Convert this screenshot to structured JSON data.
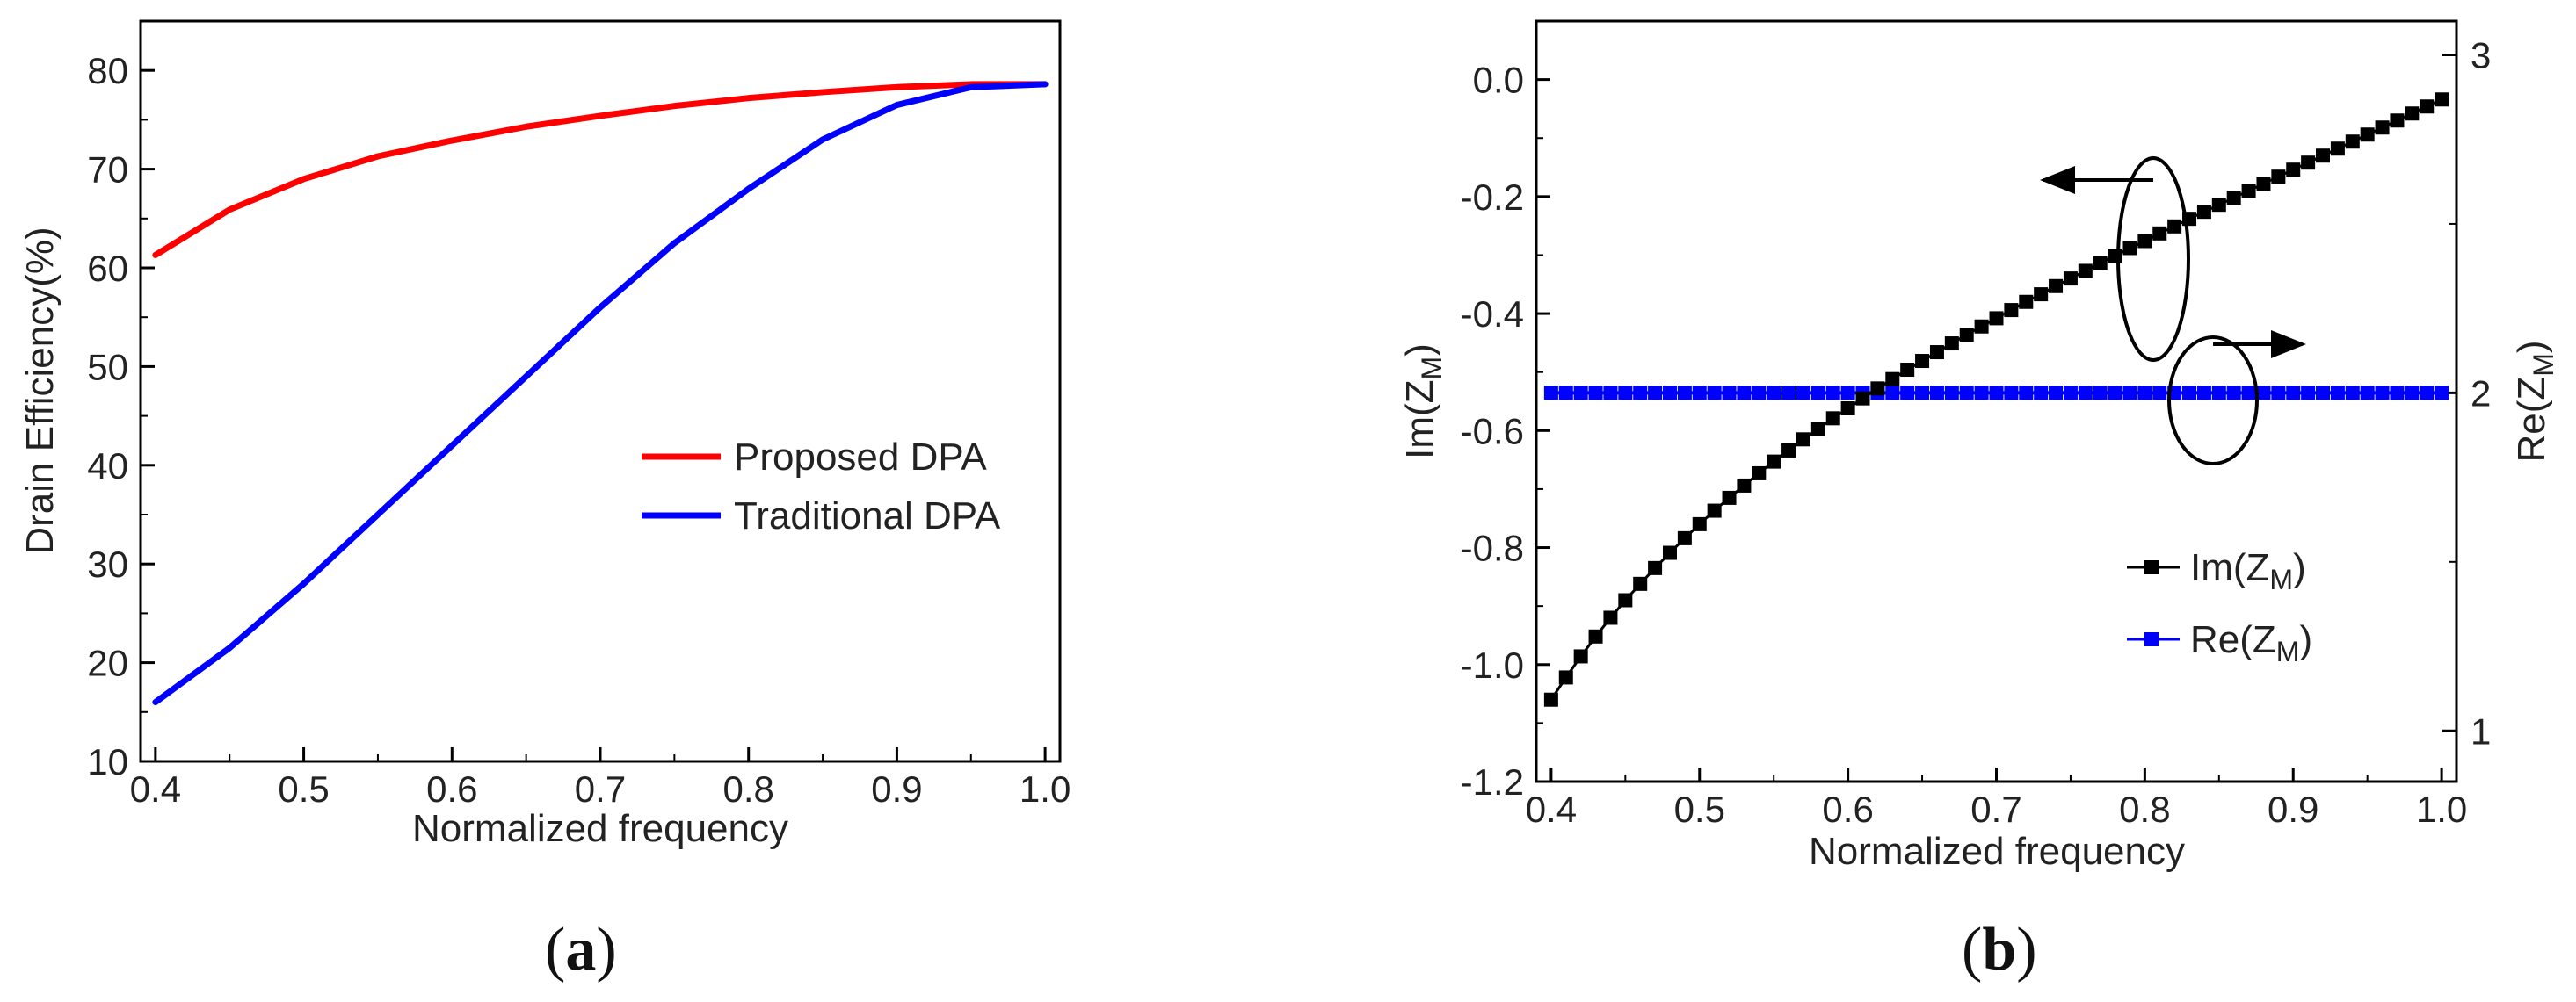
{
  "chart_data": [
    {
      "type": "line",
      "panel_label": "a",
      "xlabel": "Normalized frequency",
      "ylabel": "Drain Efficiency(%)",
      "xlim": [
        0.39,
        1.01
      ],
      "ylim": [
        10,
        85
      ],
      "xticks": [
        "0.4",
        "0.5",
        "0.6",
        "0.7",
        "0.8",
        "0.9",
        "1.0"
      ],
      "yticks": [
        "10",
        "20",
        "30",
        "40",
        "50",
        "60",
        "70",
        "80"
      ],
      "legend_position": "center-right",
      "grid": false,
      "x": [
        0.4,
        0.45,
        0.5,
        0.55,
        0.6,
        0.65,
        0.7,
        0.75,
        0.8,
        0.85,
        0.9,
        0.95,
        1.0
      ],
      "series": [
        {
          "name": "Proposed DPA",
          "color": "#ff0000",
          "values": [
            61.3,
            65.9,
            69.0,
            71.3,
            72.9,
            74.3,
            75.4,
            76.4,
            77.2,
            77.8,
            78.3,
            78.6,
            78.6
          ]
        },
        {
          "name": "Traditional DPA",
          "color": "#0000ff",
          "values": [
            16.0,
            21.5,
            28.0,
            35.0,
            42.0,
            49.0,
            56.0,
            62.5,
            68.0,
            73.0,
            76.5,
            78.3,
            78.6
          ]
        }
      ]
    },
    {
      "type": "scatter",
      "panel_label": "b",
      "xlabel": "Normalized frequency",
      "ylabel_left": "Im(Z_M)",
      "ylabel_right": "Re(Z_M)",
      "xlim": [
        0.39,
        1.01
      ],
      "ylim_left": [
        -1.2,
        0.1
      ],
      "ylim_right": [
        0.85,
        3.1
      ],
      "xticks": [
        "0.4",
        "0.5",
        "0.6",
        "0.7",
        "0.8",
        "0.9",
        "1.0"
      ],
      "yticks_left": [
        "-1.2",
        "-1.0",
        "-0.8",
        "-0.6",
        "-0.4",
        "-0.2",
        "0.0"
      ],
      "yticks_right": [
        "1",
        "2",
        "3"
      ],
      "legend_position": "bottom-right",
      "grid": false,
      "x_start": 0.4,
      "x_step": 0.01,
      "series": [
        {
          "name": "Im(Z_M)",
          "axis": "left",
          "color": "#000000",
          "marker": "square",
          "values": [
            -1.06,
            -1.022,
            -0.986,
            -0.952,
            -0.92,
            -0.89,
            -0.862,
            -0.835,
            -0.809,
            -0.784,
            -0.76,
            -0.737,
            -0.715,
            -0.694,
            -0.673,
            -0.653,
            -0.634,
            -0.615,
            -0.597,
            -0.579,
            -0.562,
            -0.545,
            -0.528,
            -0.512,
            -0.496,
            -0.481,
            -0.466,
            -0.451,
            -0.436,
            -0.422,
            -0.408,
            -0.394,
            -0.38,
            -0.367,
            -0.353,
            -0.34,
            -0.327,
            -0.314,
            -0.301,
            -0.288,
            -0.276,
            -0.263,
            -0.251,
            -0.238,
            -0.226,
            -0.214,
            -0.202,
            -0.19,
            -0.178,
            -0.166,
            -0.154,
            -0.142,
            -0.13,
            -0.118,
            -0.106,
            -0.094,
            -0.082,
            -0.07,
            -0.058,
            -0.046,
            -0.034
          ]
        },
        {
          "name": "Re(Z_M)",
          "axis": "right",
          "color": "#0000ff",
          "marker": "square",
          "constant_value": 2
        }
      ]
    }
  ]
}
